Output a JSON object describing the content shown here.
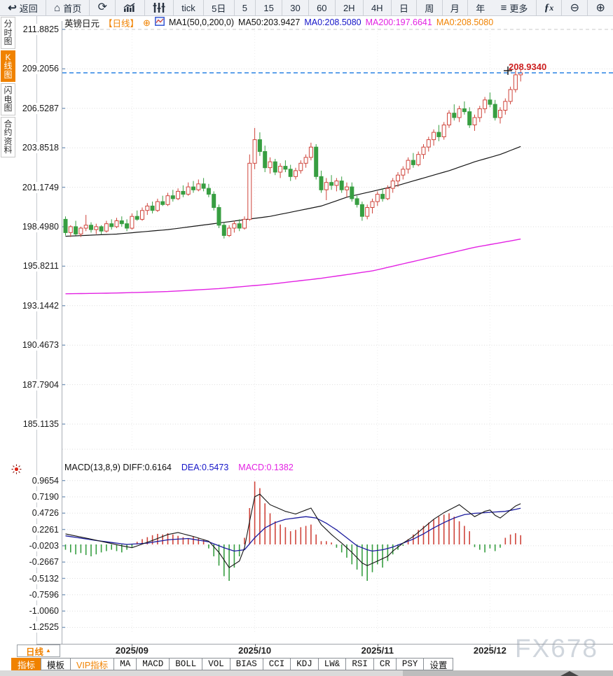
{
  "toolbar": {
    "back": "返回",
    "home": "首页",
    "periods": [
      "tick",
      "5日",
      "5",
      "15",
      "30",
      "60",
      "2H",
      "4H",
      "日",
      "周",
      "月",
      "年"
    ],
    "more_label": "更多",
    "fx_label": "fx",
    "icons": {
      "back": "↩",
      "home": "⌂",
      "refresh": "⟳",
      "more": "≡",
      "zoom_out": "⊖",
      "zoom_in": "⊕"
    }
  },
  "sidebar": {
    "items": [
      {
        "label": "分时图",
        "active": false
      },
      {
        "label": "K线图",
        "active": true
      },
      {
        "label": "闪电图",
        "active": false
      },
      {
        "label": "合约资料",
        "active": false
      }
    ]
  },
  "header": {
    "symbol": "英镑日元",
    "period_tag": "【日线】",
    "add_icon": "⊕",
    "ma_settings": "MA1(50,0,200,0)",
    "ma50": "MA50:203.9427",
    "ma0_blue": "MA0:208.5080",
    "ma200": "MA200:197.6641",
    "ma0_orange": "MA0:208.5080"
  },
  "macd_header": {
    "title": "MACD(13,8,9)",
    "diff": "DIFF:0.6164",
    "dea": "DEA:0.5473",
    "macd": "MACD:0.1382"
  },
  "price_marker": "208.9340",
  "bottom": {
    "period_selector": "日线",
    "period_arrow": "▲",
    "tabs": [
      {
        "label": "指标",
        "variant": "active"
      },
      {
        "label": "模板",
        "variant": "cjk"
      },
      {
        "label": "VIP指标",
        "variant": "vip"
      },
      {
        "label": "MA",
        "variant": "en"
      },
      {
        "label": "MACD",
        "variant": "en"
      },
      {
        "label": "BOLL",
        "variant": "en"
      },
      {
        "label": "VOL",
        "variant": "en"
      },
      {
        "label": "BIAS",
        "variant": "en"
      },
      {
        "label": "CCI",
        "variant": "en"
      },
      {
        "label": "KDJ",
        "variant": "en"
      },
      {
        "label": "LW&",
        "variant": "en"
      },
      {
        "label": "RSI",
        "variant": "en"
      },
      {
        "label": "CR",
        "variant": "en"
      },
      {
        "label": "PSY",
        "variant": "en"
      },
      {
        "label": "设置",
        "variant": "cjk"
      }
    ]
  },
  "watermark": "FX678",
  "colors": {
    "accent": "#f08200",
    "up": "#cf443b",
    "down": "#379e41",
    "ma50": "#151515",
    "ma200": "#e322e3",
    "diff": "#151515",
    "dea": "#1b1b9e",
    "current_line": "#1677e0",
    "blue_text": "#1515c8",
    "magenta_text": "#e322e3",
    "marker_red": "#cc2020"
  },
  "chart_data": {
    "type": "candlestick",
    "symbol": "英镑日元",
    "period": "日线",
    "current_price": 208.934,
    "price_axis": [
      211.8825,
      209.2056,
      206.5287,
      203.8518,
      201.1749,
      198.498,
      195.8211,
      193.1442,
      190.4673,
      187.7904,
      185.1135
    ],
    "macd_axis": [
      0.9654,
      0.719,
      0.4726,
      0.2261,
      -0.0203,
      -0.2667,
      -0.5132,
      -0.7596,
      -1.006,
      -1.2525
    ],
    "x_labels": [
      "2025/09",
      "2025/10",
      "2025/11",
      "2025/12"
    ],
    "x_label_indices": [
      13,
      37,
      61,
      83
    ],
    "ma50_value": 203.9427,
    "ma200_value": 197.6641,
    "macd_values": {
      "diff": 0.6164,
      "dea": 0.5473,
      "macd": 0.1382
    },
    "candles": [
      [
        199.0,
        199.2,
        197.9,
        198.1
      ],
      [
        198.1,
        198.6,
        197.8,
        198.5
      ],
      [
        198.5,
        198.9,
        197.9,
        198.0
      ],
      [
        198.0,
        198.5,
        197.8,
        198.4
      ],
      [
        198.4,
        199.3,
        198.2,
        198.6
      ],
      [
        198.6,
        198.8,
        198.1,
        198.3
      ],
      [
        198.3,
        198.7,
        198.0,
        198.5
      ],
      [
        198.5,
        198.6,
        198.0,
        198.2
      ],
      [
        198.2,
        198.9,
        198.1,
        198.7
      ],
      [
        198.7,
        199.0,
        198.3,
        198.5
      ],
      [
        198.5,
        199.1,
        198.4,
        198.9
      ],
      [
        198.9,
        199.2,
        198.5,
        198.7
      ],
      [
        198.7,
        199.0,
        198.2,
        198.4
      ],
      [
        198.4,
        199.4,
        198.3,
        199.2
      ],
      [
        199.2,
        199.6,
        198.9,
        199.0
      ],
      [
        199.0,
        199.8,
        198.9,
        199.6
      ],
      [
        199.6,
        200.1,
        199.3,
        199.9
      ],
      [
        199.9,
        200.2,
        199.4,
        199.6
      ],
      [
        199.6,
        200.4,
        199.5,
        200.2
      ],
      [
        200.2,
        200.6,
        199.9,
        200.0
      ],
      [
        200.0,
        200.8,
        199.9,
        200.6
      ],
      [
        200.6,
        201.0,
        200.2,
        200.4
      ],
      [
        200.4,
        201.1,
        200.3,
        200.9
      ],
      [
        200.9,
        201.3,
        200.5,
        200.7
      ],
      [
        200.7,
        201.5,
        200.6,
        201.2
      ],
      [
        201.2,
        201.6,
        200.8,
        201.0
      ],
      [
        201.0,
        201.7,
        200.9,
        201.4
      ],
      [
        201.4,
        201.8,
        200.9,
        201.1
      ],
      [
        201.1,
        201.4,
        200.5,
        200.7
      ],
      [
        200.7,
        200.9,
        199.6,
        199.8
      ],
      [
        199.8,
        200.0,
        198.4,
        198.6
      ],
      [
        198.6,
        198.8,
        197.7,
        197.9
      ],
      [
        197.9,
        198.6,
        197.8,
        198.4
      ],
      [
        198.4,
        198.9,
        198.1,
        198.7
      ],
      [
        198.7,
        199.0,
        198.2,
        198.4
      ],
      [
        198.4,
        199.2,
        198.3,
        199.0
      ],
      [
        199.0,
        203.4,
        198.9,
        202.8
      ],
      [
        202.8,
        205.2,
        202.4,
        204.4
      ],
      [
        204.4,
        204.9,
        203.3,
        203.6
      ],
      [
        203.6,
        204.0,
        202.2,
        202.5
      ],
      [
        202.5,
        203.2,
        202.1,
        202.9
      ],
      [
        202.9,
        203.1,
        202.0,
        202.2
      ],
      [
        202.2,
        202.8,
        201.8,
        202.6
      ],
      [
        202.6,
        203.0,
        202.2,
        202.4
      ],
      [
        202.4,
        202.7,
        201.6,
        201.9
      ],
      [
        201.9,
        202.5,
        201.7,
        202.3
      ],
      [
        202.3,
        203.0,
        202.1,
        202.8
      ],
      [
        202.8,
        203.4,
        202.5,
        203.2
      ],
      [
        203.2,
        204.2,
        203.0,
        203.9
      ],
      [
        203.9,
        204.1,
        201.7,
        201.9
      ],
      [
        201.9,
        202.3,
        200.8,
        201.0
      ],
      [
        201.0,
        201.8,
        200.3,
        201.5
      ],
      [
        201.5,
        202.0,
        201.0,
        201.3
      ],
      [
        201.3,
        201.8,
        200.9,
        201.6
      ],
      [
        201.6,
        201.9,
        200.8,
        201.0
      ],
      [
        201.0,
        201.5,
        200.5,
        201.2
      ],
      [
        201.2,
        201.5,
        200.2,
        200.4
      ],
      [
        200.4,
        200.6,
        199.8,
        200.0
      ],
      [
        200.0,
        200.2,
        198.9,
        199.2
      ],
      [
        199.2,
        200.0,
        199.0,
        199.8
      ],
      [
        199.8,
        200.4,
        199.4,
        200.2
      ],
      [
        200.2,
        200.9,
        199.9,
        200.7
      ],
      [
        200.7,
        201.1,
        200.2,
        200.4
      ],
      [
        200.4,
        201.3,
        200.3,
        201.1
      ],
      [
        201.1,
        201.8,
        200.8,
        201.6
      ],
      [
        201.6,
        202.2,
        201.2,
        202.0
      ],
      [
        202.0,
        202.6,
        201.7,
        202.4
      ],
      [
        202.4,
        203.2,
        202.1,
        203.0
      ],
      [
        203.0,
        203.5,
        202.5,
        202.7
      ],
      [
        202.7,
        203.6,
        202.6,
        203.4
      ],
      [
        203.4,
        204.1,
        203.1,
        203.9
      ],
      [
        203.9,
        204.6,
        203.6,
        204.4
      ],
      [
        204.4,
        205.1,
        204.0,
        204.9
      ],
      [
        204.9,
        205.4,
        204.3,
        204.6
      ],
      [
        204.6,
        205.6,
        204.4,
        205.4
      ],
      [
        205.4,
        206.4,
        205.2,
        206.2
      ],
      [
        206.2,
        206.8,
        205.7,
        205.9
      ],
      [
        205.9,
        206.7,
        205.6,
        206.5
      ],
      [
        206.5,
        207.0,
        206.1,
        206.3
      ],
      [
        206.3,
        206.6,
        205.2,
        205.4
      ],
      [
        205.4,
        206.1,
        205.0,
        205.9
      ],
      [
        205.9,
        206.7,
        205.6,
        206.5
      ],
      [
        206.5,
        207.3,
        206.2,
        207.1
      ],
      [
        207.1,
        207.6,
        206.6,
        206.8
      ],
      [
        206.8,
        207.1,
        205.7,
        205.9
      ],
      [
        205.9,
        206.6,
        205.5,
        206.4
      ],
      [
        206.4,
        207.2,
        206.1,
        207.0
      ],
      [
        207.0,
        208.0,
        206.8,
        207.8
      ],
      [
        207.8,
        209.1,
        207.6,
        208.8
      ],
      [
        208.8,
        209.15,
        208.35,
        208.93
      ]
    ],
    "ma50_points": [
      [
        0,
        197.85
      ],
      [
        10,
        198.0
      ],
      [
        20,
        198.3
      ],
      [
        30,
        198.75
      ],
      [
        40,
        199.2
      ],
      [
        50,
        199.9
      ],
      [
        55,
        200.5
      ],
      [
        60,
        200.9
      ],
      [
        65,
        201.3
      ],
      [
        70,
        201.8
      ],
      [
        75,
        202.3
      ],
      [
        80,
        202.9
      ],
      [
        85,
        203.4
      ],
      [
        89,
        203.94
      ]
    ],
    "ma200_points": [
      [
        0,
        193.95
      ],
      [
        10,
        194.0
      ],
      [
        20,
        194.1
      ],
      [
        30,
        194.3
      ],
      [
        40,
        194.6
      ],
      [
        50,
        195.0
      ],
      [
        60,
        195.5
      ],
      [
        70,
        196.3
      ],
      [
        80,
        197.1
      ],
      [
        89,
        197.66
      ]
    ],
    "macd_hist": [
      -0.08,
      -0.12,
      -0.15,
      -0.13,
      -0.16,
      -0.18,
      -0.15,
      -0.12,
      -0.1,
      -0.08,
      -0.1,
      -0.12,
      -0.08,
      -0.04,
      0.04,
      0.08,
      0.11,
      0.14,
      0.16,
      0.15,
      0.17,
      0.15,
      0.13,
      0.11,
      0.09,
      0.12,
      0.1,
      0.07,
      -0.06,
      -0.18,
      -0.32,
      -0.48,
      -0.55,
      -0.35,
      -0.18,
      0.1,
      0.55,
      0.95,
      0.85,
      0.62,
      0.47,
      0.35,
      0.3,
      0.26,
      0.2,
      0.22,
      0.26,
      0.28,
      0.3,
      0.15,
      0.05,
      0.05,
      0.03,
      -0.05,
      -0.12,
      -0.2,
      -0.3,
      -0.38,
      -0.48,
      -0.55,
      -0.42,
      -0.3,
      -0.35,
      -0.25,
      -0.15,
      -0.08,
      -0.02,
      0.08,
      0.15,
      0.22,
      0.28,
      0.33,
      0.38,
      0.42,
      0.45,
      0.47,
      0.42,
      0.35,
      0.28,
      0.2,
      -0.04,
      -0.08,
      -0.12,
      -0.06,
      -0.1,
      -0.05,
      0.1,
      0.15,
      0.17,
      0.14
    ],
    "diff_points": [
      [
        0,
        0.16
      ],
      [
        5,
        0.08
      ],
      [
        11,
        -0.02
      ],
      [
        13,
        -0.05
      ],
      [
        17,
        0.06
      ],
      [
        20,
        0.15
      ],
      [
        22,
        0.18
      ],
      [
        25,
        0.12
      ],
      [
        28,
        0.05
      ],
      [
        30,
        -0.12
      ],
      [
        32,
        -0.35
      ],
      [
        34,
        -0.25
      ],
      [
        35,
        -0.05
      ],
      [
        36,
        0.35
      ],
      [
        37,
        0.72
      ],
      [
        38,
        0.76
      ],
      [
        40,
        0.6
      ],
      [
        43,
        0.5
      ],
      [
        45,
        0.46
      ],
      [
        47,
        0.52
      ],
      [
        48,
        0.55
      ],
      [
        50,
        0.3
      ],
      [
        52,
        0.15
      ],
      [
        54,
        0.02
      ],
      [
        56,
        -0.12
      ],
      [
        58,
        -0.28
      ],
      [
        59,
        -0.32
      ],
      [
        61,
        -0.25
      ],
      [
        63,
        -0.18
      ],
      [
        64,
        -0.1
      ],
      [
        66,
        0.02
      ],
      [
        68,
        0.12
      ],
      [
        70,
        0.25
      ],
      [
        72,
        0.38
      ],
      [
        74,
        0.48
      ],
      [
        76,
        0.56
      ],
      [
        77,
        0.6
      ],
      [
        79,
        0.48
      ],
      [
        80,
        0.42
      ],
      [
        82,
        0.5
      ],
      [
        83,
        0.52
      ],
      [
        84,
        0.44
      ],
      [
        85,
        0.4
      ],
      [
        86,
        0.46
      ],
      [
        87,
        0.52
      ],
      [
        88,
        0.58
      ],
      [
        89,
        0.6164
      ]
    ],
    "dea_points": [
      [
        0,
        0.13
      ],
      [
        6,
        0.06
      ],
      [
        12,
        0.0
      ],
      [
        16,
        0.02
      ],
      [
        20,
        0.07
      ],
      [
        24,
        0.09
      ],
      [
        28,
        0.04
      ],
      [
        31,
        -0.05
      ],
      [
        33,
        -0.1
      ],
      [
        35,
        -0.08
      ],
      [
        37,
        0.1
      ],
      [
        39,
        0.25
      ],
      [
        41,
        0.33
      ],
      [
        43,
        0.38
      ],
      [
        45,
        0.4
      ],
      [
        47,
        0.42
      ],
      [
        49,
        0.4
      ],
      [
        51,
        0.32
      ],
      [
        53,
        0.22
      ],
      [
        55,
        0.1
      ],
      [
        57,
        -0.02
      ],
      [
        59,
        -0.08
      ],
      [
        60,
        -0.1
      ],
      [
        62,
        -0.08
      ],
      [
        64,
        -0.04
      ],
      [
        66,
        0.02
      ],
      [
        68,
        0.08
      ],
      [
        70,
        0.16
      ],
      [
        72,
        0.25
      ],
      [
        74,
        0.33
      ],
      [
        76,
        0.4
      ],
      [
        78,
        0.45
      ],
      [
        80,
        0.47
      ],
      [
        82,
        0.48
      ],
      [
        84,
        0.49
      ],
      [
        86,
        0.5
      ],
      [
        88,
        0.53
      ],
      [
        89,
        0.5473
      ]
    ]
  }
}
